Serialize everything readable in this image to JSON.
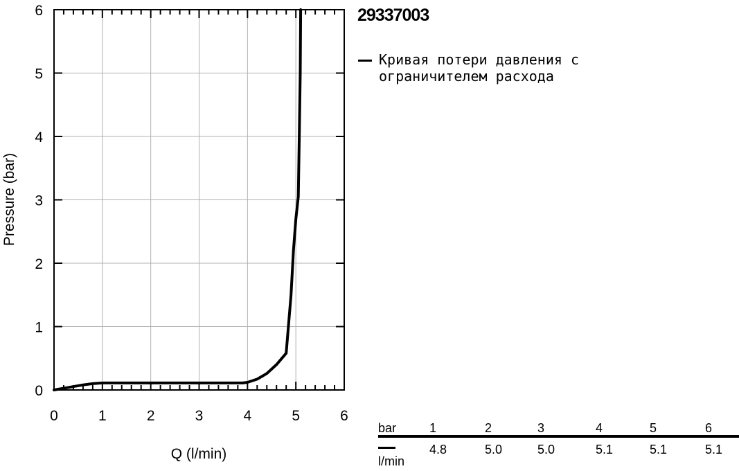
{
  "chart_data": {
    "type": "line",
    "title": "29337003",
    "xlabel": "Q (l/min)",
    "ylabel": "Pressure (bar)",
    "xlim": [
      0,
      6
    ],
    "ylim": [
      0,
      6
    ],
    "xticks": [
      "0",
      "1",
      "2",
      "3",
      "4",
      "5",
      "6"
    ],
    "yticks": [
      "0",
      "1",
      "2",
      "3",
      "4",
      "5",
      "6"
    ],
    "grid": true,
    "legend_position": "right",
    "series": [
      {
        "name": "Кривая потери давления с ограничителем расхода",
        "color": "#000000",
        "points": [
          [
            0,
            0
          ],
          [
            0.3,
            0.04
          ],
          [
            0.6,
            0.08
          ],
          [
            0.8,
            0.1
          ],
          [
            1.0,
            0.11
          ],
          [
            2.0,
            0.11
          ],
          [
            3.0,
            0.11
          ],
          [
            3.9,
            0.11
          ],
          [
            4.0,
            0.12
          ],
          [
            4.2,
            0.17
          ],
          [
            4.4,
            0.26
          ],
          [
            4.6,
            0.4
          ],
          [
            4.8,
            0.58
          ],
          [
            4.9,
            1.5
          ],
          [
            4.95,
            2.2
          ],
          [
            5.0,
            2.7
          ],
          [
            5.05,
            3.05
          ],
          [
            5.07,
            4.0
          ],
          [
            5.09,
            5.0
          ],
          [
            5.1,
            6.0
          ]
        ]
      }
    ]
  },
  "table": {
    "header_unit": "bar",
    "row_unit": "l/min",
    "pressures": [
      "1",
      "2",
      "3",
      "4",
      "5",
      "6"
    ],
    "flows": [
      "4.8",
      "5.0",
      "5.0",
      "5.1",
      "5.1",
      "5.1"
    ]
  }
}
